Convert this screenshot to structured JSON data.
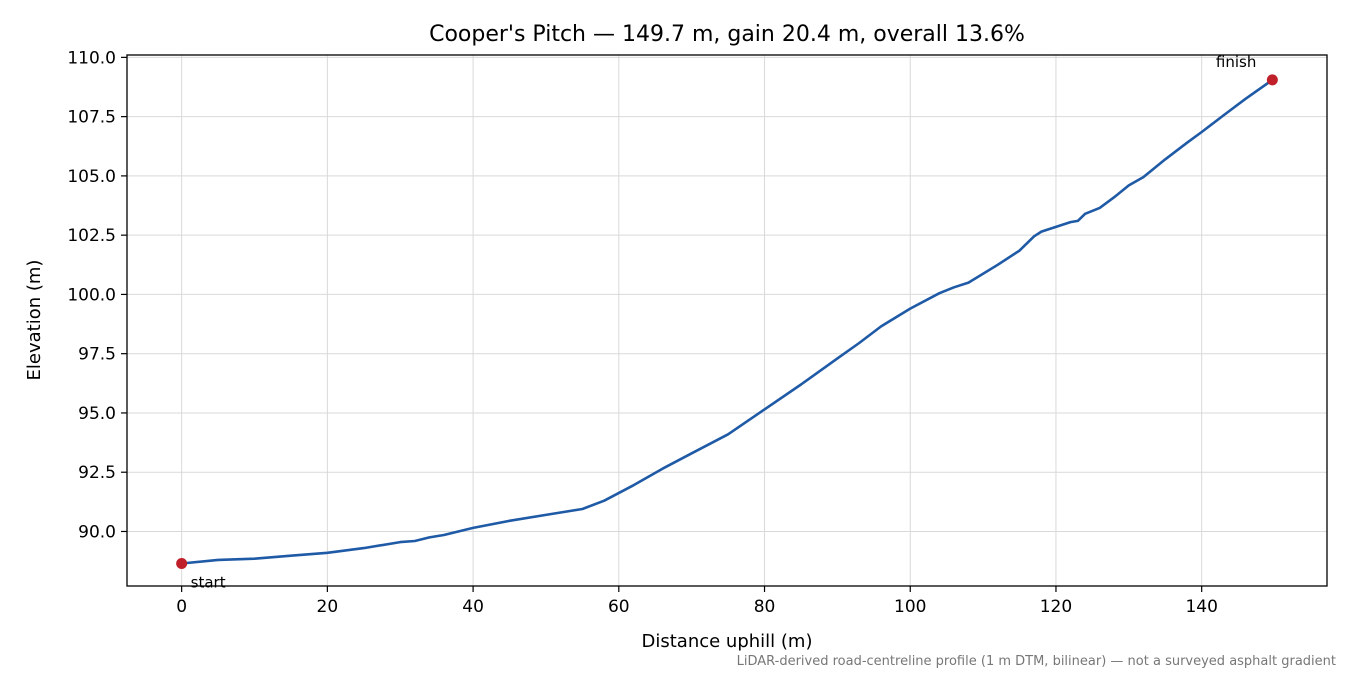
{
  "chart_data": {
    "type": "line",
    "title": "Cooper's Pitch — 149.7 m, gain 20.4 m, overall 13.6%",
    "xlabel": "Distance uphill (m)",
    "ylabel": "Elevation (m)",
    "xlim": [
      -7.5,
      157.2
    ],
    "ylim": [
      87.7,
      110.1
    ],
    "x_ticks": [
      0,
      20,
      40,
      60,
      80,
      100,
      120,
      140
    ],
    "y_ticks": [
      90.0,
      92.5,
      95.0,
      97.5,
      100.0,
      102.5,
      105.0,
      107.5,
      110.0
    ],
    "grid": true,
    "line_color": "#1f5aa6",
    "marker_color": "#c0202a",
    "series": [
      {
        "x": [
          0,
          5,
          10,
          15,
          20,
          25,
          30,
          32,
          34,
          36,
          40,
          45,
          50,
          55,
          58,
          62,
          66,
          70,
          75,
          80,
          85,
          90,
          93,
          96,
          100,
          104,
          106,
          108,
          112,
          115,
          117,
          118,
          121,
          122,
          123,
          124,
          126,
          128,
          130,
          132,
          135,
          138,
          140,
          143,
          146,
          149.7
        ],
        "y": [
          88.65,
          88.8,
          88.85,
          88.98,
          89.1,
          89.3,
          89.55,
          89.6,
          89.75,
          89.85,
          90.15,
          90.45,
          90.7,
          90.95,
          91.3,
          91.95,
          92.65,
          93.3,
          94.1,
          95.15,
          96.2,
          97.3,
          97.95,
          98.65,
          99.4,
          100.05,
          100.3,
          100.5,
          101.25,
          101.85,
          102.45,
          102.65,
          102.95,
          103.05,
          103.1,
          103.4,
          103.65,
          104.1,
          104.6,
          104.95,
          105.7,
          106.4,
          106.85,
          107.55,
          108.25,
          109.05
        ]
      }
    ],
    "annotations": [
      {
        "text": "start",
        "x": 0,
        "y": 88.65
      },
      {
        "text": "finish",
        "x": 149.7,
        "y": 109.05
      }
    ],
    "footnote": "LiDAR-derived road-centreline profile (1 m DTM, bilinear) — not a surveyed asphalt gradient"
  }
}
